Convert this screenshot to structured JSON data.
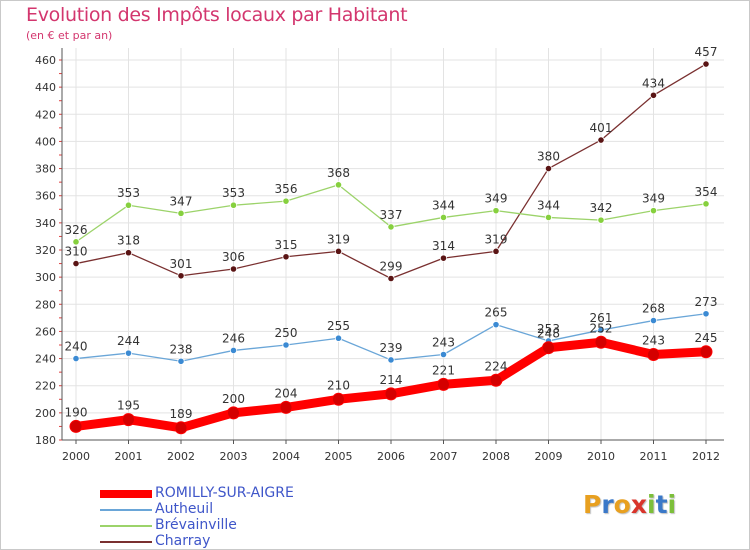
{
  "title": "Evolution des Impôts locaux par Habitant",
  "subtitle": "(en € et par an)",
  "logo": {
    "letters": [
      "P",
      "r",
      "o",
      "x",
      "i",
      "t",
      "i"
    ],
    "colors": [
      "#e8a020",
      "#3a78c8",
      "#e8a020",
      "#d9342b",
      "#7cbf3a",
      "#3a78c8",
      "#7cbf3a"
    ]
  },
  "chart_data": {
    "type": "line",
    "x": [
      "2000",
      "2001",
      "2002",
      "2003",
      "2004",
      "2005",
      "2006",
      "2007",
      "2008",
      "2009",
      "2010",
      "2011",
      "2012"
    ],
    "ylim": [
      180,
      460
    ],
    "yticks": [
      180,
      200,
      220,
      240,
      260,
      280,
      300,
      320,
      340,
      360,
      380,
      400,
      420,
      440,
      460
    ],
    "grid": true,
    "legend": "bottom-left",
    "series": [
      {
        "name": "ROMILLY-SUR-AIGRE",
        "color": "#ff0000",
        "marker": "#d40000",
        "width": 9,
        "values": [
          190,
          195,
          189,
          200,
          204,
          210,
          214,
          221,
          224,
          248,
          252,
          243,
          245
        ]
      },
      {
        "name": "Autheuil",
        "color": "#6aa6d8",
        "marker": "#3b8ad3",
        "width": 1.3,
        "values": [
          240,
          244,
          238,
          246,
          250,
          255,
          239,
          243,
          265,
          253,
          261,
          268,
          273
        ]
      },
      {
        "name": "Brévainville",
        "color": "#9cd36a",
        "marker": "#86d03e",
        "width": 1.3,
        "values": [
          326,
          353,
          347,
          353,
          356,
          368,
          337,
          344,
          349,
          344,
          342,
          349,
          354
        ]
      },
      {
        "name": "Charray",
        "color": "#7a3030",
        "marker": "#5a1414",
        "width": 1.3,
        "values": [
          310,
          318,
          301,
          306,
          315,
          319,
          299,
          314,
          319,
          380,
          401,
          434,
          457
        ]
      }
    ]
  }
}
